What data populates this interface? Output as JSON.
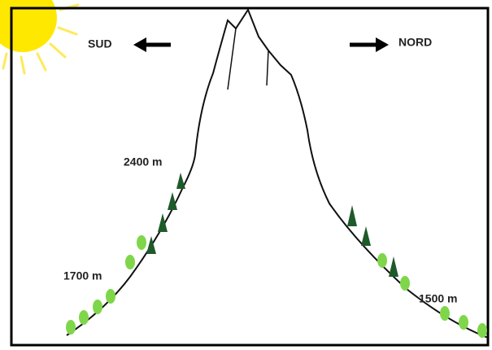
{
  "labels": {
    "south": "SUD",
    "north": "NORD"
  },
  "altitudes": [
    "2400 m",
    "1700 m",
    "1500 m"
  ]
}
